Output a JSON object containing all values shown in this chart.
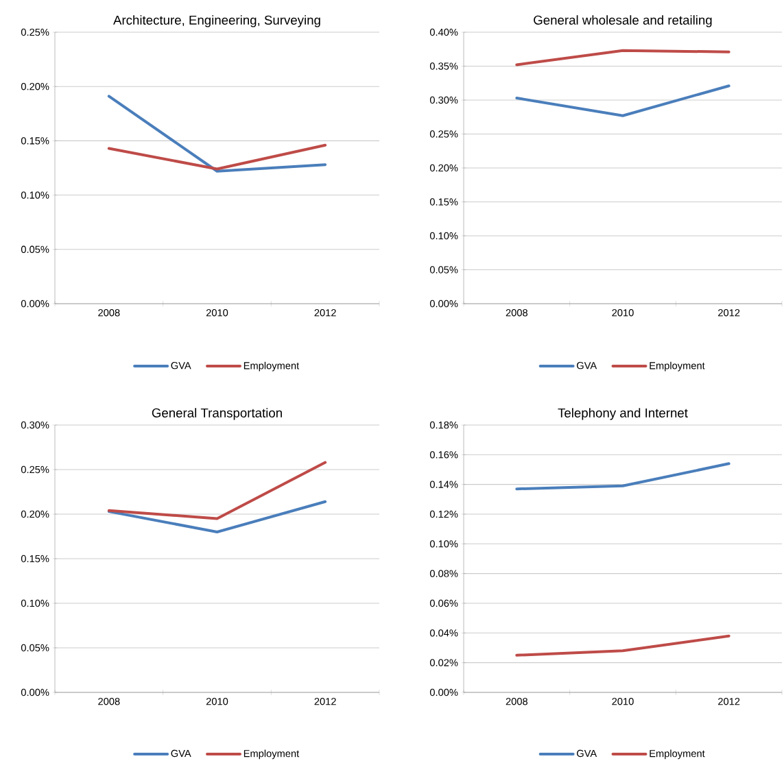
{
  "chart_data": [
    {
      "type": "line",
      "title": "Architecture, Engineering, Surveying",
      "categories": [
        "2008",
        "2010",
        "2012"
      ],
      "series": [
        {
          "name": "GVA",
          "color": "#4a7ebb",
          "values": [
            0.191,
            0.122,
            0.128
          ]
        },
        {
          "name": "Employment",
          "color": "#be4b48",
          "values": [
            0.143,
            0.124,
            0.146
          ]
        }
      ],
      "ylim": [
        0,
        0.25
      ],
      "yticks": [
        {
          "value": 0,
          "label": "0.00%"
        },
        {
          "value": 0.05,
          "label": "0.05%"
        },
        {
          "value": 0.1,
          "label": "0.10%"
        },
        {
          "value": 0.15,
          "label": "0.15%"
        },
        {
          "value": 0.2,
          "label": "0.20%"
        },
        {
          "value": 0.25,
          "label": "0.25%"
        }
      ],
      "grid": "y",
      "legend": "bottom"
    },
    {
      "type": "line",
      "title": "General wholesale and retailing",
      "categories": [
        "2008",
        "2010",
        "2012"
      ],
      "series": [
        {
          "name": "GVA",
          "color": "#4a7ebb",
          "values": [
            0.303,
            0.277,
            0.321
          ]
        },
        {
          "name": "Employment",
          "color": "#be4b48",
          "values": [
            0.352,
            0.373,
            0.371
          ]
        }
      ],
      "ylim": [
        0,
        0.4
      ],
      "yticks": [
        {
          "value": 0,
          "label": "0.00%"
        },
        {
          "value": 0.05,
          "label": "0.05%"
        },
        {
          "value": 0.1,
          "label": "0.10%"
        },
        {
          "value": 0.15,
          "label": "0.15%"
        },
        {
          "value": 0.2,
          "label": "0.20%"
        },
        {
          "value": 0.25,
          "label": "0.25%"
        },
        {
          "value": 0.3,
          "label": "0.30%"
        },
        {
          "value": 0.35,
          "label": "0.35%"
        },
        {
          "value": 0.4,
          "label": "0.40%"
        }
      ],
      "grid": "y",
      "legend": "bottom"
    },
    {
      "type": "line",
      "title": "General Transportation",
      "categories": [
        "2008",
        "2010",
        "2012"
      ],
      "series": [
        {
          "name": "GVA",
          "color": "#4a7ebb",
          "values": [
            0.203,
            0.18,
            0.214
          ]
        },
        {
          "name": "Employment",
          "color": "#be4b48",
          "values": [
            0.204,
            0.195,
            0.258
          ]
        }
      ],
      "ylim": [
        0,
        0.3
      ],
      "yticks": [
        {
          "value": 0,
          "label": "0.00%"
        },
        {
          "value": 0.05,
          "label": "0.05%"
        },
        {
          "value": 0.1,
          "label": "0.10%"
        },
        {
          "value": 0.15,
          "label": "0.15%"
        },
        {
          "value": 0.2,
          "label": "0.20%"
        },
        {
          "value": 0.25,
          "label": "0.25%"
        },
        {
          "value": 0.3,
          "label": "0.30%"
        }
      ],
      "grid": "y",
      "legend": "bottom"
    },
    {
      "type": "line",
      "title": "Telephony and Internet",
      "categories": [
        "2008",
        "2010",
        "2012"
      ],
      "series": [
        {
          "name": "GVA",
          "color": "#4a7ebb",
          "values": [
            0.137,
            0.139,
            0.154
          ]
        },
        {
          "name": "Employment",
          "color": "#be4b48",
          "values": [
            0.025,
            0.028,
            0.038
          ]
        }
      ],
      "ylim": [
        0,
        0.18
      ],
      "yticks": [
        {
          "value": 0,
          "label": "0.00%"
        },
        {
          "value": 0.02,
          "label": "0.02%"
        },
        {
          "value": 0.04,
          "label": "0.04%"
        },
        {
          "value": 0.06,
          "label": "0.06%"
        },
        {
          "value": 0.08,
          "label": "0.08%"
        },
        {
          "value": 0.1,
          "label": "0.10%"
        },
        {
          "value": 0.12,
          "label": "0.12%"
        },
        {
          "value": 0.14,
          "label": "0.14%"
        },
        {
          "value": 0.16,
          "label": "0.16%"
        },
        {
          "value": 0.18,
          "label": "0.18%"
        }
      ],
      "grid": "y",
      "legend": "bottom"
    }
  ]
}
